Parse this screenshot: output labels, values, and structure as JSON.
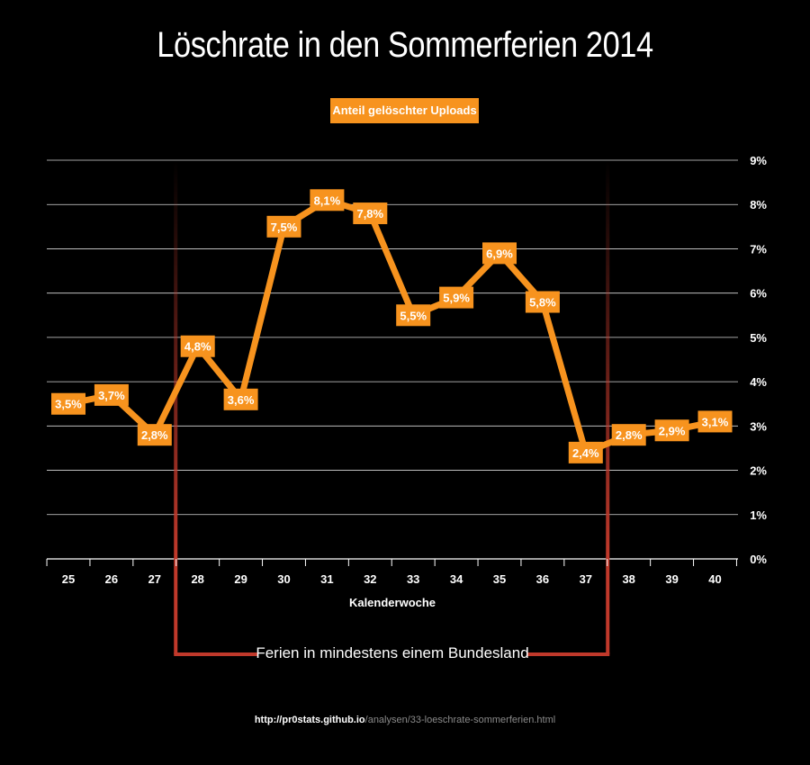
{
  "title": "Löschrate in den Sommerferien 2014",
  "legend_label": "Anteil gelöschter Uploads",
  "source": {
    "host": "http://pr0stats.github.io",
    "path": "/analysen/33-loeschrate-sommerferien.html"
  },
  "colors": {
    "line": "#f7931e",
    "label_bg": "#f7931e",
    "grid": "#ffffff",
    "bracket": "#c0392b",
    "background": "#000000"
  },
  "chart_data": {
    "type": "line",
    "title": "Löschrate in den Sommerferien 2014",
    "xlabel": "Kalenderwoche",
    "ylabel": "",
    "categories": [
      "25",
      "26",
      "27",
      "28",
      "29",
      "30",
      "31",
      "32",
      "33",
      "34",
      "35",
      "36",
      "37",
      "38",
      "39",
      "40"
    ],
    "series": [
      {
        "name": "Anteil gelöschter Uploads",
        "values": [
          3.5,
          3.7,
          2.8,
          4.8,
          3.6,
          7.5,
          8.1,
          7.8,
          5.5,
          5.9,
          6.9,
          5.8,
          2.4,
          2.8,
          2.9,
          3.1
        ]
      }
    ],
    "data_labels": [
      "3,5%",
      "3,7%",
      "2,8%",
      "4,8%",
      "3,6%",
      "7,5%",
      "8,1%",
      "7,8%",
      "5,5%",
      "5,9%",
      "6,9%",
      "5,8%",
      "2,4%",
      "2,8%",
      "2,9%",
      "3,1%"
    ],
    "y_ticks": [
      "0%",
      "1%",
      "2%",
      "3%",
      "4%",
      "5%",
      "6%",
      "7%",
      "8%",
      "9%"
    ],
    "ylim": [
      0,
      9
    ],
    "grid": true,
    "legend_position": "top-center",
    "annotation": {
      "text": "Ferien in mindestens einem Bundesland",
      "from_week": "27",
      "to_week": "37"
    }
  }
}
